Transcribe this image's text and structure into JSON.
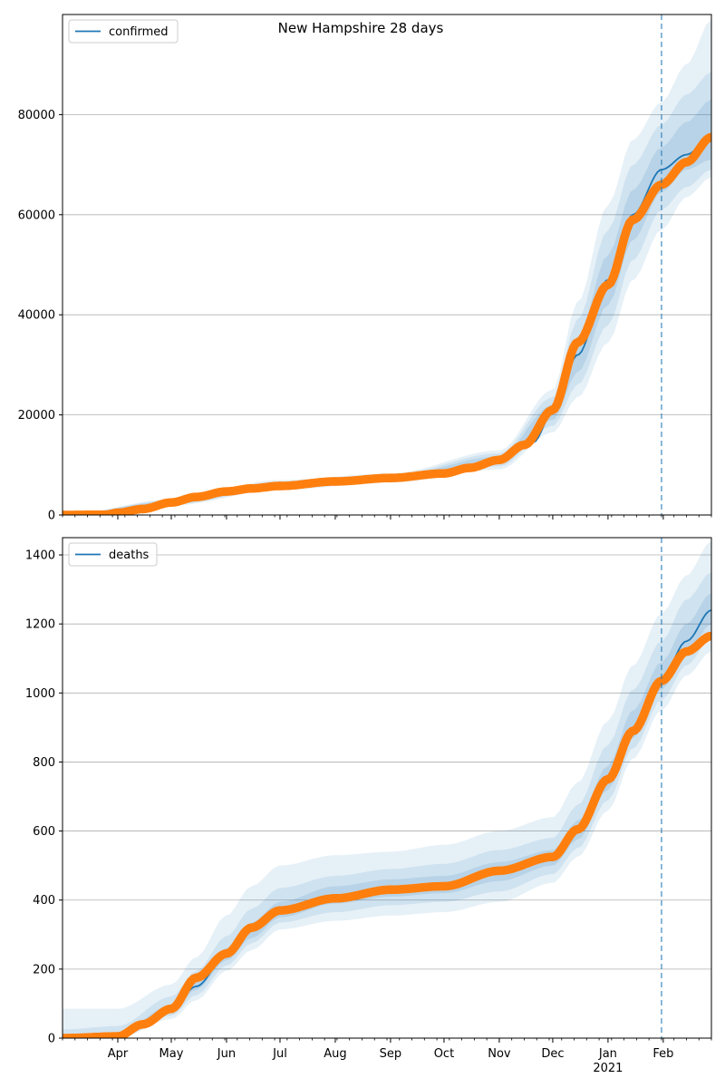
{
  "title": "New Hampshire 28 days",
  "colors": {
    "model": "#1f77b4",
    "observed": "#ff7f0e",
    "band": "#1f77b4",
    "grid": "#b0b0b0",
    "vline": "#1f77b4"
  },
  "x_axis": {
    "start": "2020-03-01",
    "end": "2021-02-28",
    "month_ticks": [
      {
        "date": "2020-04-01",
        "label": "Apr"
      },
      {
        "date": "2020-05-01",
        "label": "May"
      },
      {
        "date": "2020-06-01",
        "label": "Jun"
      },
      {
        "date": "2020-07-01",
        "label": "Jul"
      },
      {
        "date": "2020-08-01",
        "label": "Aug"
      },
      {
        "date": "2020-09-01",
        "label": "Sep"
      },
      {
        "date": "2020-10-01",
        "label": "Oct"
      },
      {
        "date": "2020-11-01",
        "label": "Nov"
      },
      {
        "date": "2020-12-01",
        "label": "Dec"
      },
      {
        "date": "2021-01-01",
        "label": "Jan"
      },
      {
        "date": "2021-02-01",
        "label": "Feb"
      }
    ],
    "year_label": {
      "date": "2021-01-01",
      "label": "2021"
    },
    "forecast_start": "2021-01-31"
  },
  "chart_data": [
    {
      "type": "line",
      "legend": "confirmed",
      "legend_position": "upper-left",
      "grid": true,
      "ylim": [
        0,
        100000
      ],
      "yticks": [
        0,
        20000,
        40000,
        60000,
        80000
      ],
      "model": {
        "x": [
          "2020-03-01",
          "2020-04-01",
          "2020-05-01",
          "2020-06-01",
          "2020-07-01",
          "2020-08-01",
          "2020-09-01",
          "2020-10-01",
          "2020-11-01",
          "2020-11-20",
          "2020-12-01",
          "2020-12-15",
          "2021-01-01",
          "2021-01-15",
          "2021-01-31",
          "2021-02-14",
          "2021-02-28"
        ],
        "y": [
          0,
          400,
          2500,
          4800,
          6000,
          6800,
          7400,
          8300,
          11000,
          14500,
          20500,
          32000,
          47000,
          60000,
          69000,
          72000,
          75500
        ]
      },
      "bands": {
        "x": [
          "2020-03-01",
          "2020-05-01",
          "2020-07-01",
          "2020-09-01",
          "2020-11-01",
          "2020-12-01",
          "2020-12-15",
          "2021-01-01",
          "2021-01-15",
          "2021-01-31",
          "2021-02-14",
          "2021-02-28"
        ],
        "inner": {
          "lower": [
            0,
            2300,
            5600,
            7100,
            10300,
            19000,
            28500,
            42000,
            55000,
            64500,
            69000,
            71000
          ],
          "upper": [
            0,
            2700,
            6400,
            7700,
            11700,
            22000,
            35500,
            52000,
            65000,
            73500,
            78500,
            83000
          ]
        },
        "middle": {
          "lower": [
            0,
            2100,
            5300,
            6800,
            9700,
            17800,
            26000,
            38000,
            51000,
            61000,
            65500,
            69000
          ],
          "upper": [
            0,
            2900,
            6700,
            8000,
            12300,
            23500,
            39000,
            57000,
            70000,
            78000,
            84000,
            88500
          ]
        },
        "outer": {
          "lower": [
            0,
            1900,
            5000,
            6500,
            9100,
            16500,
            23500,
            34500,
            47000,
            57000,
            63500,
            67500
          ],
          "upper": [
            0,
            3100,
            7000,
            8300,
            12900,
            25000,
            42500,
            62000,
            75000,
            82500,
            90000,
            99000
          ]
        }
      },
      "observed": {
        "x": [
          "2020-03-01",
          "2020-03-25",
          "2020-04-01",
          "2020-04-15",
          "2020-05-01",
          "2020-05-15",
          "2020-06-01",
          "2020-06-15",
          "2020-07-01",
          "2020-08-01",
          "2020-09-01",
          "2020-10-01",
          "2020-10-15",
          "2020-11-01",
          "2020-11-15",
          "2020-12-01",
          "2020-12-15",
          "2021-01-01",
          "2021-01-15",
          "2021-01-31",
          "2021-02-14",
          "2021-02-28"
        ],
        "y": [
          0,
          50,
          450,
          1200,
          2500,
          3600,
          4700,
          5300,
          5800,
          6700,
          7400,
          8300,
          9400,
          11000,
          14000,
          21000,
          34500,
          46000,
          59000,
          66000,
          70500,
          75500
        ]
      }
    },
    {
      "type": "line",
      "legend": "deaths",
      "legend_position": "upper-left",
      "grid": true,
      "ylim": [
        0,
        1450
      ],
      "yticks": [
        0,
        200,
        400,
        600,
        800,
        1000,
        1200,
        1400
      ],
      "model": {
        "x": [
          "2020-03-01",
          "2020-04-01",
          "2020-05-01",
          "2020-05-15",
          "2020-06-01",
          "2020-06-15",
          "2020-07-01",
          "2020-08-01",
          "2020-09-01",
          "2020-10-01",
          "2020-11-01",
          "2020-12-01",
          "2020-12-15",
          "2021-01-01",
          "2021-01-15",
          "2021-01-31",
          "2021-02-14",
          "2021-02-28"
        ],
        "y": [
          0,
          5,
          85,
          150,
          240,
          310,
          370,
          410,
          430,
          440,
          480,
          520,
          600,
          750,
          900,
          1040,
          1150,
          1240
        ]
      },
      "bands": {
        "x": [
          "2020-03-01",
          "2020-04-01",
          "2020-05-01",
          "2020-05-15",
          "2020-06-01",
          "2020-06-15",
          "2020-07-01",
          "2020-08-01",
          "2020-09-01",
          "2020-10-01",
          "2020-11-01",
          "2020-12-01",
          "2020-12-15",
          "2021-01-01",
          "2021-01-15",
          "2021-01-31",
          "2021-02-14",
          "2021-02-28"
        ],
        "inner": {
          "lower": [
            0,
            0,
            75,
            140,
            225,
            290,
            350,
            390,
            410,
            420,
            455,
            500,
            575,
            720,
            870,
            1010,
            1115,
            1200
          ],
          "upper": [
            0,
            15,
            95,
            165,
            260,
            335,
            395,
            440,
            460,
            470,
            510,
            545,
            630,
            790,
            950,
            1090,
            1200,
            1290
          ]
        },
        "middle": {
          "lower": [
            0,
            0,
            65,
            125,
            210,
            275,
            335,
            365,
            385,
            395,
            425,
            475,
            550,
            690,
            840,
            980,
            1080,
            1160
          ],
          "upper": [
            25,
            35,
            120,
            195,
            295,
            375,
            435,
            470,
            490,
            505,
            545,
            580,
            675,
            850,
            1010,
            1150,
            1270,
            1350
          ]
        },
        "outer": {
          "lower": [
            0,
            0,
            55,
            110,
            195,
            255,
            315,
            340,
            355,
            365,
            395,
            450,
            525,
            660,
            810,
            950,
            1050,
            1120
          ],
          "upper": [
            85,
            85,
            155,
            235,
            355,
            440,
            500,
            530,
            540,
            560,
            600,
            640,
            740,
            920,
            1080,
            1230,
            1340,
            1440
          ]
        }
      },
      "observed": {
        "x": [
          "2020-03-01",
          "2020-04-01",
          "2020-04-15",
          "2020-05-01",
          "2020-05-15",
          "2020-06-01",
          "2020-06-15",
          "2020-07-01",
          "2020-08-01",
          "2020-09-01",
          "2020-10-01",
          "2020-11-01",
          "2020-12-01",
          "2020-12-15",
          "2021-01-01",
          "2021-01-15",
          "2021-01-31",
          "2021-02-14",
          "2021-02-28"
        ],
        "y": [
          0,
          5,
          40,
          85,
          175,
          245,
          320,
          370,
          405,
          430,
          440,
          485,
          525,
          605,
          750,
          890,
          1035,
          1120,
          1165
        ]
      }
    }
  ]
}
